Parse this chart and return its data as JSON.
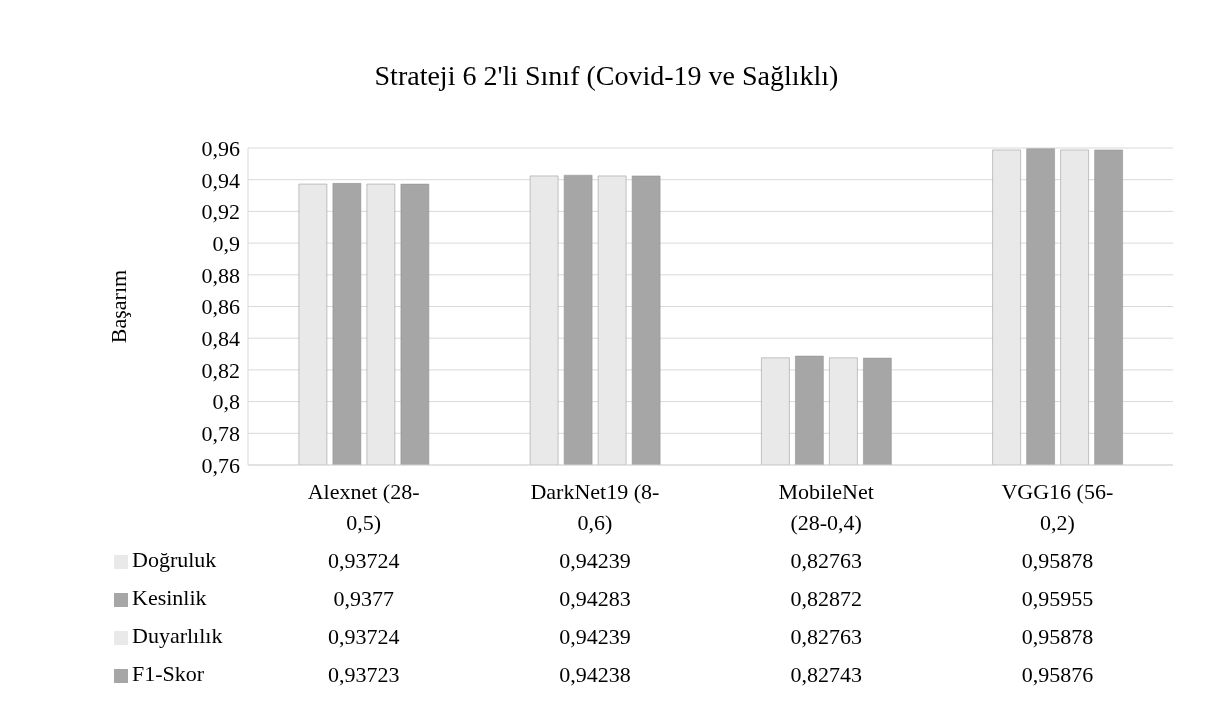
{
  "chart_data": {
    "type": "bar",
    "title": "Strateji 6 2'li Sınıf (Covid-19 ve Sağlıklı)",
    "ylabel": "Başarım",
    "categories": [
      "Alexnet (28-0,5)",
      "DarkNet19 (8-0,6)",
      "MobileNet (28-0,4)",
      "VGG16 (56-0,2)"
    ],
    "series": [
      {
        "name": "Doğruluk",
        "color": "#e9e9e9",
        "values": [
          0.93724,
          0.94239,
          0.82763,
          0.95878
        ],
        "value_labels": [
          "0,93724",
          "0,94239",
          "0,82763",
          "0,95878"
        ]
      },
      {
        "name": "Kesinlik",
        "color": "#a6a6a6",
        "values": [
          0.9377,
          0.94283,
          0.82872,
          0.95955
        ],
        "value_labels": [
          "0,9377",
          "0,94283",
          "0,82872",
          "0,95955"
        ]
      },
      {
        "name": "Duyarlılık",
        "color": "#e9e9e9",
        "values": [
          0.93724,
          0.94239,
          0.82763,
          0.95878
        ],
        "value_labels": [
          "0,93724",
          "0,94239",
          "0,82763",
          "0,95878"
        ]
      },
      {
        "name": "F1-Skor",
        "color": "#a6a6a6",
        "values": [
          0.93723,
          0.94238,
          0.82743,
          0.95876
        ],
        "value_labels": [
          "0,93723",
          "0,94238",
          "0,82743",
          "0,95876"
        ]
      }
    ],
    "ylim": [
      0.76,
      0.96
    ],
    "yticks": [
      {
        "value": 0.76,
        "label": "0,76"
      },
      {
        "value": 0.78,
        "label": "0,78"
      },
      {
        "value": 0.8,
        "label": "0,8"
      },
      {
        "value": 0.82,
        "label": "0,82"
      },
      {
        "value": 0.84,
        "label": "0,84"
      },
      {
        "value": 0.86,
        "label": "0,86"
      },
      {
        "value": 0.88,
        "label": "0,88"
      },
      {
        "value": 0.9,
        "label": "0,9"
      },
      {
        "value": 0.92,
        "label": "0,92"
      },
      {
        "value": 0.94,
        "label": "0,94"
      },
      {
        "value": 0.96,
        "label": "0,96"
      }
    ],
    "grid": "y",
    "legend": "bottom"
  }
}
